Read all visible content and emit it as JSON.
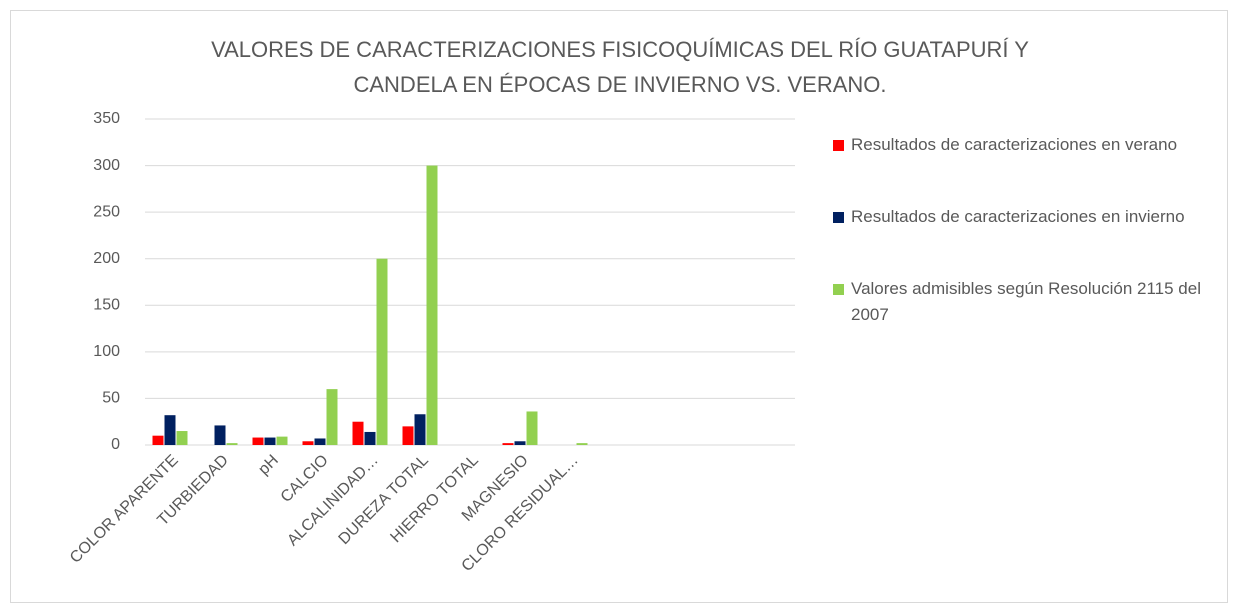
{
  "chart_data": {
    "type": "bar",
    "title": "VALORES DE CARACTERIZACIONES FISICOQUÍMICAS DEL RÍO GUATAPURÍ Y CANDELA EN ÉPOCAS DE INVIERNO VS. VERANO.",
    "categories": [
      "COLOR APARENTE",
      "TURBIEDAD",
      "pH",
      "CALCIO",
      "ALCALINIDAD…",
      "DUREZA TOTAL",
      "HIERRO TOTAL",
      "MAGNESIO",
      "CLORO RESIDUAL…",
      null,
      null,
      null,
      null
    ],
    "series": [
      {
        "name": "Resultados de caracterizaciones en verano",
        "color": "#ff0000",
        "values": [
          10,
          0,
          8,
          4,
          25,
          20,
          0,
          2,
          0,
          null,
          null,
          null,
          null
        ]
      },
      {
        "name": "Resultados de caracterizaciones en invierno",
        "color": "#002060",
        "values": [
          32,
          21,
          8,
          7,
          14,
          33,
          0,
          4,
          0,
          null,
          null,
          null,
          null
        ]
      },
      {
        "name": "Valores admisibles según Resolución 2115 del 2007",
        "color": "#92d050",
        "values": [
          15,
          2,
          9,
          60,
          200,
          300,
          0,
          36,
          2,
          null,
          null,
          null,
          null
        ]
      }
    ],
    "ylim": [
      0,
      350
    ],
    "yticks": [
      0,
      50,
      100,
      150,
      200,
      250,
      300,
      350
    ],
    "grid": true,
    "legend": "right"
  }
}
